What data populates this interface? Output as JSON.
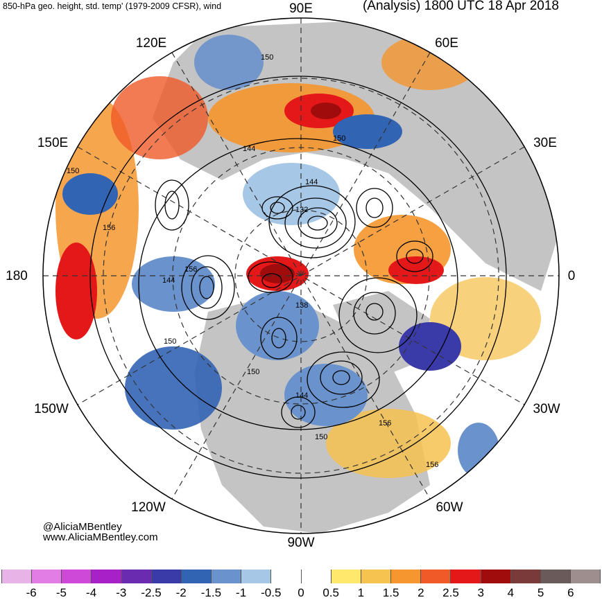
{
  "header": {
    "left_title": "850-hPa geo. height, std. temp' (1979-2009 CFSR), wind",
    "right_title": "(Analysis) 1800 UTC 18 Apr 2018"
  },
  "map": {
    "projection": "north polar stereographic",
    "longitude_labels": {
      "top": "90E",
      "upper_left": "120E",
      "upper_right": "60E",
      "left_upper": "150E",
      "right_upper": "30E",
      "left": "180",
      "right": "0",
      "left_lower": "150W",
      "right_lower": "30W",
      "lower_left": "120W",
      "lower_right": "60W",
      "bottom": "90W"
    },
    "contour_labels": [
      "150",
      "150",
      "144",
      "144",
      "132",
      "150",
      "156",
      "156",
      "144",
      "150",
      "138",
      "150",
      "144",
      "156",
      "150",
      "156"
    ],
    "land_color": "#c4c4c4",
    "ocean_color": "#ffffff"
  },
  "credits": {
    "handle": "@AliciaMBentley",
    "website": "www.AliciaMBentley.com"
  },
  "colorbar": {
    "labels": [
      "-6",
      "-5",
      "-4",
      "-3",
      "-2.5",
      "-2",
      "-1.5",
      "-1",
      "-0.5",
      "0",
      "0.5",
      "1",
      "1.5",
      "2",
      "2.5",
      "3",
      "4",
      "5",
      "6"
    ],
    "colors": [
      "#e8b4e8",
      "#e27de6",
      "#cf49d8",
      "#a820c8",
      "#6b2bb0",
      "#3a3aa8",
      "#3264b4",
      "#6a92cc",
      "#a6c8e6",
      "#ffffff",
      "#ffffff",
      "#ffe86c",
      "#f6c250",
      "#f5962e",
      "#f05a28",
      "#e41818",
      "#a00c0c",
      "#7a3a3a",
      "#6b5a5a",
      "#9e8e8e"
    ]
  }
}
